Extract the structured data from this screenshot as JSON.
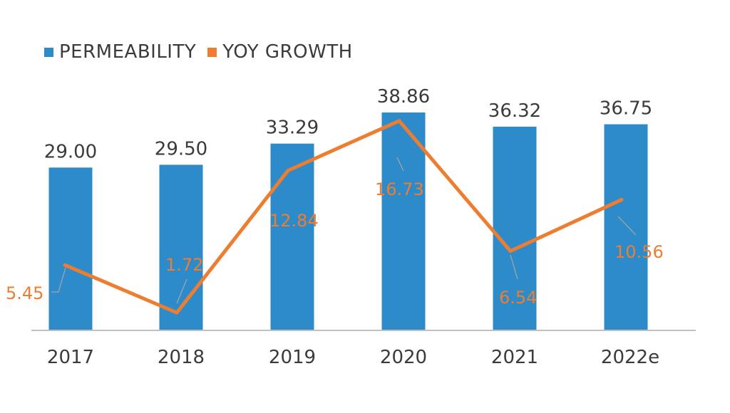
{
  "chart_data": {
    "type": "bar",
    "categories": [
      "2017",
      "2018",
      "2019",
      "2020",
      "2021",
      "2022e"
    ],
    "series": [
      {
        "name": "PERMEABILITY",
        "type": "bar",
        "values": [
          29.0,
          29.5,
          33.29,
          38.86,
          36.32,
          36.75
        ],
        "labels": [
          "29.00",
          "29.50",
          "33.29",
          "38.86",
          "36.32",
          "36.75"
        ]
      },
      {
        "name": "YOY GROWTH",
        "type": "line",
        "values": [
          5.45,
          1.72,
          12.84,
          16.73,
          6.54,
          10.56
        ],
        "labels": [
          "5.45",
          "1.72",
          "12.84",
          "16.73",
          "6.54",
          "10.56"
        ]
      }
    ],
    "legend_position": "top-left",
    "grid": false,
    "colors": {
      "bar": "#2e8bc9",
      "line": "#ed7d31",
      "axis": "#bfbfbf",
      "text": "#3b3b3b"
    }
  }
}
